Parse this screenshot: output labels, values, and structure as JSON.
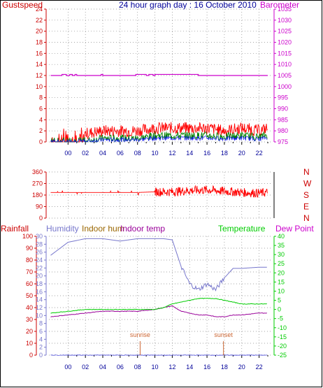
{
  "header": {
    "gust_label": "Gustspeed",
    "title": "24 hour graph day : 16 October 2010",
    "baro_label": "Barometer"
  },
  "colors": {
    "gust": "#ff0000",
    "wind": "#008000",
    "avg": "#0000ff",
    "baro": "#cc00cc",
    "humidity": "#7777cc",
    "indoor_hum": "#996600",
    "indoor_temp": "#990099",
    "temperature": "#00cc00",
    "dewpoint": "#cc00cc",
    "rain": "#0000cc",
    "label_red": "#cc0000",
    "title_blue": "#000099",
    "sun": "#cc6633"
  },
  "x_ticks": [
    "00",
    "02",
    "04",
    "06",
    "08",
    "10",
    "12",
    "14",
    "16",
    "18",
    "20",
    "22"
  ],
  "wind_dir_labels": [
    "N",
    "W",
    "S",
    "E",
    "N"
  ],
  "panel3": {
    "rainfall_label": "Rainfall",
    "humidity_label": "Humidity",
    "indoor_hum_label": "Indoor hum",
    "indoor_temp_label": "Indoor temp",
    "temperature_label": "Temperature",
    "dewpoint_label": "Dew Point",
    "sunrise_label": "sunrise",
    "sunset_label": "sunset"
  },
  "chart_data": [
    {
      "type": "line",
      "title": "24 hour graph day : 16 October 2010",
      "y_left": {
        "label": "Gustspeed",
        "ticks": [
          0,
          2,
          4,
          6,
          8,
          10,
          12,
          14,
          16,
          18,
          20,
          22,
          24
        ]
      },
      "y_right": {
        "label": "Barometer",
        "ticks": [
          975,
          980,
          985,
          990,
          995,
          1000,
          1005,
          1010,
          1015,
          1020,
          1025,
          1030,
          1035
        ]
      },
      "x_hours": [
        -2,
        0,
        2,
        4,
        6,
        8,
        10,
        12,
        14,
        16,
        18,
        20,
        22,
        23
      ],
      "series": [
        {
          "name": "Barometer",
          "values": [
            1005,
            1005.5,
            1005.5,
            1005.5,
            1005,
            1005,
            1005.5,
            1005.5,
            1005.5,
            1005,
            1005,
            1005,
            1005,
            1005
          ]
        },
        {
          "name": "Gustspeed",
          "values": [
            1,
            1.5,
            1.5,
            2,
            2,
            2,
            2.5,
            2.5,
            2.5,
            2.5,
            2,
            2.5,
            2,
            2.5
          ]
        },
        {
          "name": "Windspeed",
          "values": [
            0,
            0,
            0,
            0.5,
            0.5,
            0.5,
            1,
            1,
            1,
            1,
            0.8,
            1,
            0.7,
            1.2
          ]
        }
      ]
    },
    {
      "type": "line",
      "y_left": {
        "ticks": [
          0,
          90,
          180,
          270,
          360
        ]
      },
      "y_right": {
        "labels": [
          "N",
          "W",
          "S",
          "E",
          "N"
        ]
      },
      "x_hours": [
        -2,
        0,
        2,
        4,
        6,
        8,
        10,
        12,
        14,
        16,
        18,
        20,
        22,
        23
      ],
      "series": [
        {
          "name": "Wind direction",
          "values": [
            200,
            200,
            200,
            200,
            200,
            200,
            205,
            205,
            215,
            220,
            210,
            200,
            195,
            200
          ]
        }
      ]
    },
    {
      "type": "line",
      "y_left": {
        "label": "Rainfall",
        "ticks": [
          0,
          10,
          20,
          30,
          40,
          50,
          60,
          70,
          80,
          90,
          100
        ]
      },
      "y_left2": {
        "label": "Humidity",
        "ticks": [
          0,
          2,
          4,
          6,
          8,
          10,
          12,
          14,
          16,
          18,
          20,
          22,
          24,
          26,
          28,
          30
        ]
      },
      "y_right": {
        "label": "Dew Point",
        "ticks": [
          -25,
          -20,
          -15,
          -10,
          -5,
          0,
          5,
          10,
          15,
          20,
          25,
          30,
          35,
          40
        ]
      },
      "x_hours": [
        -2,
        0,
        2,
        4,
        6,
        8,
        10,
        11,
        12,
        13,
        14,
        15,
        16,
        17,
        18,
        19,
        20,
        22,
        23
      ],
      "series": [
        {
          "name": "Humidity",
          "values": [
            84,
            95,
            98,
            98,
            96,
            98,
            98,
            98,
            97,
            75,
            60,
            55,
            60,
            55,
            65,
            73,
            73,
            74,
            74
          ]
        },
        {
          "name": "Indoor temp",
          "values": [
            -4,
            -3,
            -2,
            -1,
            -1,
            -1,
            0,
            1,
            2,
            -1,
            -2,
            -3,
            -3,
            -4,
            -4,
            -3,
            -3,
            -2,
            -2
          ]
        },
        {
          "name": "Temperature",
          "values": [
            -2,
            -1,
            0,
            0,
            0,
            0,
            0,
            1,
            3,
            4,
            5,
            6,
            6,
            6,
            5,
            4,
            3,
            3,
            3
          ]
        },
        {
          "name": "Rainfall",
          "values": [
            0,
            0,
            0,
            0,
            0,
            0,
            0,
            0,
            0,
            0,
            0,
            0,
            0,
            0,
            0,
            0,
            0,
            0,
            0
          ]
        }
      ],
      "annotations": [
        {
          "text": "sunrise",
          "hour": 8.3
        },
        {
          "text": "sunset",
          "hour": 17.9
        }
      ]
    }
  ]
}
